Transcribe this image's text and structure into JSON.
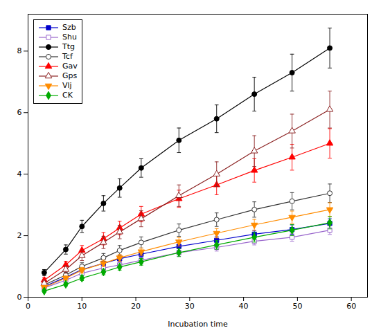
{
  "chart_data": {
    "type": "line",
    "xlabel": "Incubation time",
    "x": [
      3,
      7,
      10,
      14,
      17,
      21,
      28,
      35,
      42,
      49,
      56
    ],
    "series": [
      {
        "name": "Szb",
        "color": "#0000CC",
        "marker": "square",
        "line_style": "solid",
        "values": [
          0.35,
          0.65,
          0.9,
          1.1,
          1.25,
          1.4,
          1.65,
          1.85,
          2.05,
          2.2,
          2.4
        ],
        "yerr": [
          0.05,
          0.08,
          0.1,
          0.12,
          0.1,
          0.12,
          0.12,
          0.12,
          0.12,
          0.15,
          0.15
        ]
      },
      {
        "name": "Shu",
        "color": "#9966CC",
        "marker": "square-open",
        "line_style": "solid",
        "values": [
          0.3,
          0.55,
          0.78,
          0.95,
          1.05,
          1.2,
          1.45,
          1.62,
          1.82,
          1.95,
          2.18
        ],
        "yerr": [
          0.05,
          0.07,
          0.09,
          0.1,
          0.1,
          0.1,
          0.12,
          0.12,
          0.12,
          0.13,
          0.14
        ]
      },
      {
        "name": "Ttg",
        "color": "#000000",
        "marker": "circle",
        "line_style": "solid",
        "values": [
          0.8,
          1.55,
          2.3,
          3.05,
          3.55,
          4.2,
          5.1,
          5.8,
          6.6,
          7.3,
          8.1
        ],
        "yerr": [
          0.1,
          0.15,
          0.2,
          0.25,
          0.3,
          0.3,
          0.4,
          0.45,
          0.55,
          0.6,
          0.65
        ]
      },
      {
        "name": "Tcf",
        "color": "#333333",
        "marker": "circle-open",
        "line_style": "solid",
        "values": [
          0.4,
          0.72,
          1.0,
          1.28,
          1.52,
          1.78,
          2.18,
          2.52,
          2.85,
          3.12,
          3.38
        ],
        "yerr": [
          0.06,
          0.09,
          0.12,
          0.14,
          0.16,
          0.18,
          0.2,
          0.22,
          0.25,
          0.28,
          0.3
        ]
      },
      {
        "name": "Gav",
        "color": "#FF0000",
        "marker": "triangle-up",
        "line_style": "solid",
        "values": [
          0.55,
          1.05,
          1.52,
          1.9,
          2.25,
          2.7,
          3.2,
          3.65,
          4.12,
          4.55,
          5.0
        ],
        "yerr": [
          0.08,
          0.12,
          0.16,
          0.2,
          0.22,
          0.25,
          0.28,
          0.32,
          0.38,
          0.42,
          0.48
        ]
      },
      {
        "name": "Gps",
        "color": "#8B2222",
        "marker": "triangle-up-open",
        "line_style": "solid",
        "values": [
          0.45,
          0.9,
          1.35,
          1.78,
          2.12,
          2.55,
          3.3,
          4.0,
          4.75,
          5.4,
          6.1
        ],
        "yerr": [
          0.08,
          0.12,
          0.16,
          0.2,
          0.22,
          0.26,
          0.35,
          0.4,
          0.5,
          0.55,
          0.6
        ]
      },
      {
        "name": "Vlj",
        "color": "#FF8C00",
        "marker": "triangle-down",
        "line_style": "solid",
        "values": [
          0.32,
          0.62,
          0.88,
          1.1,
          1.28,
          1.48,
          1.8,
          2.08,
          2.35,
          2.6,
          2.85
        ],
        "yerr": [
          0.05,
          0.07,
          0.09,
          0.1,
          0.11,
          0.12,
          0.14,
          0.15,
          0.18,
          0.2,
          0.22
        ]
      },
      {
        "name": "CK",
        "color": "#00AA00",
        "marker": "diamond",
        "line_style": "solid",
        "values": [
          0.2,
          0.42,
          0.62,
          0.82,
          0.98,
          1.15,
          1.45,
          1.7,
          1.95,
          2.18,
          2.42
        ],
        "yerr": [
          0.04,
          0.06,
          0.08,
          0.09,
          0.1,
          0.11,
          0.13,
          0.14,
          0.16,
          0.18,
          0.2
        ]
      }
    ],
    "xlim": [
      0,
      63
    ],
    "ylim": [
      0,
      9.2
    ],
    "xticks": [
      0,
      10,
      20,
      30,
      40,
      50,
      60
    ],
    "yticks": [
      0,
      2,
      4,
      6,
      8
    ],
    "grid": false,
    "legend": "upper left"
  }
}
